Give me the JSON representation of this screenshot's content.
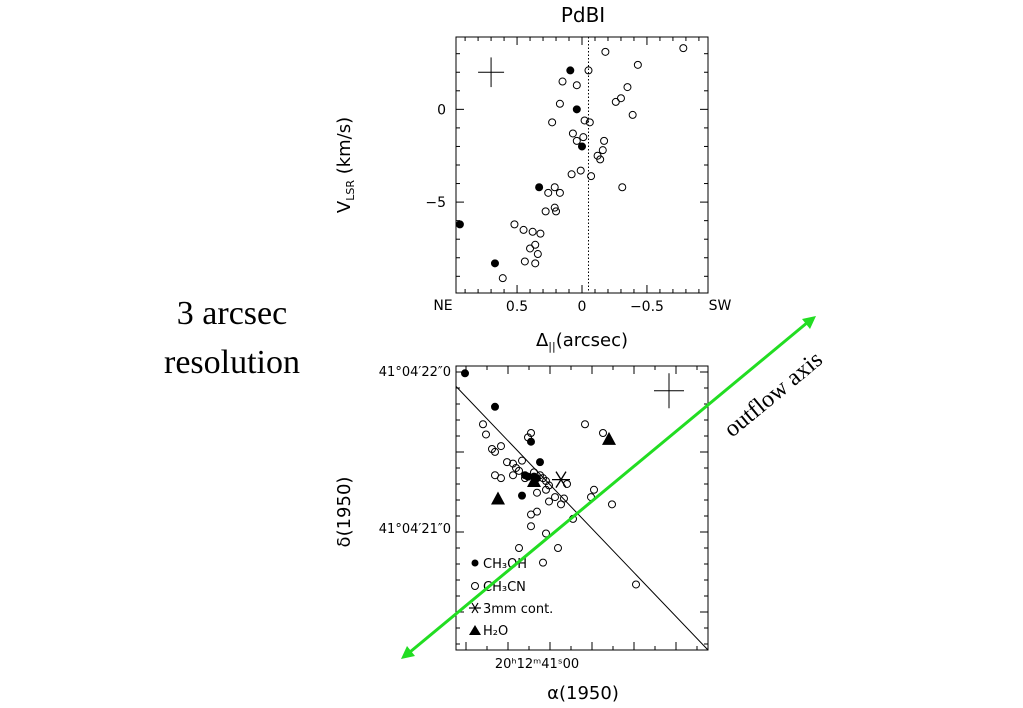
{
  "colors": {
    "ink": "#000000",
    "outflow": "#22dd22",
    "dotted": "#000000"
  },
  "slide": {
    "resolution_line1": "3 arcsec",
    "resolution_line2": "resolution",
    "outflow_label": "outflow axis"
  },
  "chart_data": [
    {
      "type": "scatter",
      "title": "PdBI",
      "ylabel": "V_LSR (km/s)",
      "xlabel": "Δ_||(arcsec)",
      "x_direction_left": "NE",
      "x_direction_right": "SW",
      "xlim": [
        0.97,
        -0.97
      ],
      "ylim": [
        -9.9,
        3.9
      ],
      "xticks": [
        0.5,
        0,
        -0.5
      ],
      "xtick_labels": [
        "0.5",
        "0",
        "−0.5"
      ],
      "yticks": [
        0,
        -5
      ],
      "ytick_labels": [
        "0",
        "−5"
      ],
      "reference_line_x": -0.05,
      "error_bar": {
        "x": 0.7,
        "y": 2.0,
        "dx": 0.1,
        "dy": 0.8
      },
      "series": [
        {
          "name": "CH3OH",
          "marker": "filled-circle",
          "points": [
            [
              0.94,
              -6.2
            ],
            [
              0.67,
              -8.3
            ],
            [
              0.33,
              -4.2
            ],
            [
              0.09,
              2.1
            ],
            [
              0.04,
              0.0
            ],
            [
              0.0,
              -2.0
            ]
          ]
        },
        {
          "name": "CH3CN",
          "marker": "open-circle",
          "points": [
            [
              -0.78,
              3.3
            ],
            [
              -0.43,
              2.4
            ],
            [
              -0.18,
              3.1
            ],
            [
              -0.05,
              2.1
            ],
            [
              0.04,
              1.3
            ],
            [
              0.15,
              1.5
            ],
            [
              -0.35,
              1.2
            ],
            [
              -0.3,
              0.6
            ],
            [
              -0.26,
              0.4
            ],
            [
              0.17,
              0.3
            ],
            [
              -0.39,
              -0.3
            ],
            [
              0.23,
              -0.7
            ],
            [
              -0.02,
              -0.6
            ],
            [
              -0.06,
              -0.7
            ],
            [
              0.07,
              -1.3
            ],
            [
              0.04,
              -1.7
            ],
            [
              -0.01,
              -1.5
            ],
            [
              -0.17,
              -1.7
            ],
            [
              -0.16,
              -2.2
            ],
            [
              -0.12,
              -2.5
            ],
            [
              -0.14,
              -2.7
            ],
            [
              -0.07,
              -3.6
            ],
            [
              0.01,
              -3.3
            ],
            [
              0.08,
              -3.5
            ],
            [
              -0.31,
              -4.2
            ],
            [
              0.17,
              -4.5
            ],
            [
              0.26,
              -4.5
            ],
            [
              0.21,
              -4.2
            ],
            [
              0.21,
              -5.3
            ],
            [
              0.28,
              -5.5
            ],
            [
              0.2,
              -5.5
            ],
            [
              0.52,
              -6.2
            ],
            [
              0.45,
              -6.5
            ],
            [
              0.38,
              -6.6
            ],
            [
              0.32,
              -6.7
            ],
            [
              0.36,
              -7.3
            ],
            [
              0.34,
              -7.8
            ],
            [
              0.4,
              -7.5
            ],
            [
              0.36,
              -8.3
            ],
            [
              0.44,
              -8.2
            ],
            [
              0.61,
              -9.1
            ]
          ]
        }
      ]
    },
    {
      "type": "scatter",
      "xlabel": "α(1950)",
      "ylabel": "δ(1950)",
      "xtick_labels": [
        "20ʰ12ᵐ41ˢ00"
      ],
      "ytick_labels": [
        "41°04′22″0",
        "41°04′21″0"
      ],
      "xlim": [
        -0.15,
        0.69
      ],
      "ylim": [
        -0.9,
        1.05
      ],
      "error_bar": {
        "x": 0.56,
        "y": 0.88,
        "dx": 0.05,
        "dy": 0.12
      },
      "legend": [
        {
          "marker": "filled-circle",
          "label": "CH₃OH"
        },
        {
          "marker": "open-circle",
          "label": "CH₃CN"
        },
        {
          "marker": "asterisk",
          "label": "3mm cont."
        },
        {
          "marker": "triangle",
          "label": "H₂O"
        }
      ],
      "series": [
        {
          "name": "CH3OH",
          "marker": "filled-circle",
          "points": [
            [
              -0.12,
              1.0
            ],
            [
              -0.02,
              0.77
            ],
            [
              0.1,
              0.53
            ],
            [
              0.13,
              0.39
            ],
            [
              0.08,
              0.3
            ],
            [
              0.09,
              0.29
            ],
            [
              0.11,
              0.29
            ],
            [
              0.12,
              0.28
            ],
            [
              0.07,
              0.16
            ]
          ]
        },
        {
          "name": "CH3CN",
          "marker": "open-circle",
          "points": [
            [
              -0.06,
              0.65
            ],
            [
              -0.05,
              0.58
            ],
            [
              -0.03,
              0.48
            ],
            [
              -0.02,
              0.46
            ],
            [
              0.0,
              0.5
            ],
            [
              0.09,
              0.56
            ],
            [
              0.1,
              0.59
            ],
            [
              0.04,
              0.38
            ],
            [
              0.02,
              0.39
            ],
            [
              0.04,
              0.3
            ],
            [
              0.05,
              0.35
            ],
            [
              0.06,
              0.33
            ],
            [
              0.08,
              0.28
            ],
            [
              0.07,
              0.4
            ],
            [
              -0.02,
              0.3
            ],
            [
              0.0,
              0.28
            ],
            [
              0.11,
              0.32
            ],
            [
              0.13,
              0.3
            ],
            [
              0.14,
              0.28
            ],
            [
              0.15,
              0.26
            ],
            [
              0.16,
              0.23
            ],
            [
              0.15,
              0.2
            ],
            [
              0.12,
              0.18
            ],
            [
              0.16,
              0.12
            ],
            [
              0.18,
              0.15
            ],
            [
              0.2,
              0.1
            ],
            [
              0.21,
              0.14
            ],
            [
              0.12,
              0.05
            ],
            [
              0.1,
              0.03
            ],
            [
              0.22,
              0.24
            ],
            [
              0.31,
              0.2
            ],
            [
              0.28,
              0.65
            ],
            [
              0.34,
              0.59
            ],
            [
              0.3,
              0.15
            ],
            [
              0.37,
              0.1
            ],
            [
              0.24,
              0.0
            ],
            [
              0.1,
              -0.05
            ],
            [
              0.06,
              -0.2
            ],
            [
              0.15,
              -0.1
            ],
            [
              0.19,
              -0.2
            ],
            [
              0.14,
              -0.3
            ],
            [
              0.45,
              -0.45
            ]
          ]
        },
        {
          "name": "3mm cont.",
          "marker": "asterisk",
          "points": [
            [
              0.2,
              0.27
            ]
          ]
        },
        {
          "name": "H2O",
          "marker": "triangle",
          "points": [
            [
              0.36,
              0.55
            ],
            [
              -0.01,
              0.14
            ],
            [
              0.11,
              0.26
            ]
          ]
        }
      ],
      "ref_line": [
        [
          -0.15,
          0.91
        ],
        [
          0.69,
          -0.9
        ]
      ]
    }
  ]
}
